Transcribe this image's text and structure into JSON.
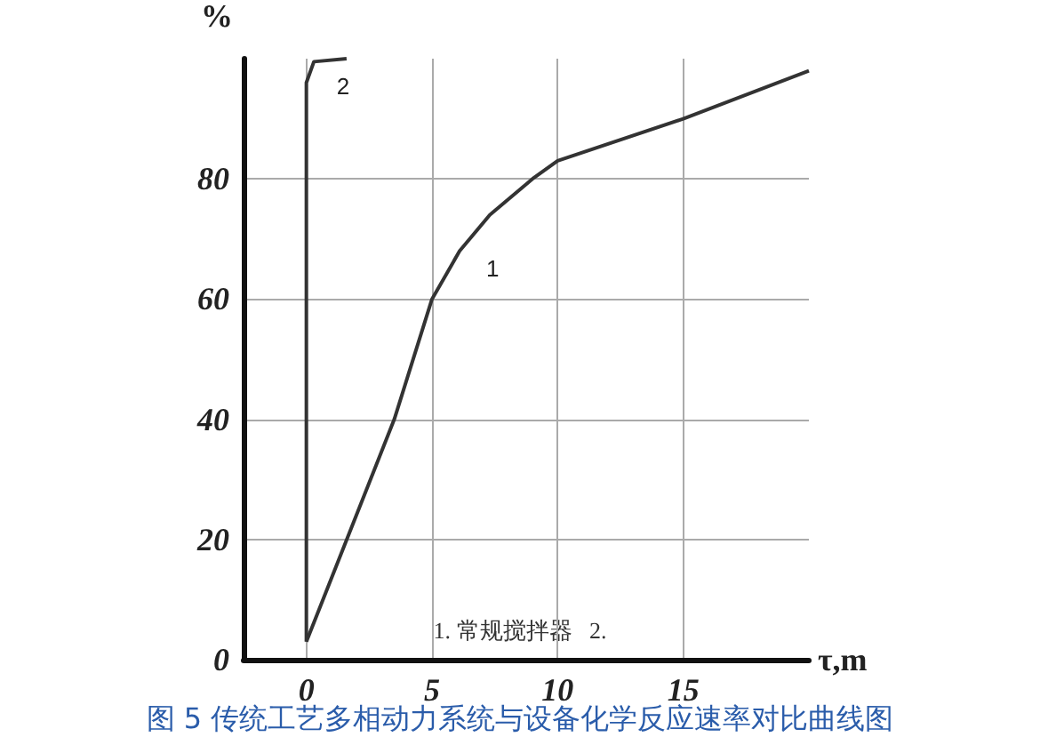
{
  "chart_data": {
    "type": "line",
    "title": "图 5 传统工艺多相动力系统与设备化学反应速率对比曲线图",
    "xlabel": "τ,m",
    "ylabel": "%",
    "xlim": [
      -2.5,
      20
    ],
    "xticks": [
      0,
      5,
      10,
      15
    ],
    "ylim": [
      0,
      100
    ],
    "yticks": [
      0,
      20,
      40,
      60,
      80
    ],
    "grid": true,
    "line_style": "solid",
    "series": [
      {
        "name": "1",
        "color": "#333333",
        "x": [
          0,
          3.5,
          5,
          6.1,
          7.3,
          9,
          10,
          15,
          20
        ],
        "values": [
          3,
          40,
          60,
          68,
          74,
          80,
          83,
          90,
          98
        ]
      },
      {
        "name": "2",
        "color": "#333333",
        "x": [
          0,
          0,
          0.3,
          1.6
        ],
        "values": [
          3,
          96,
          99.5,
          100
        ]
      }
    ],
    "annotations": [
      "1. 常规搅拌器   2."
    ]
  }
}
